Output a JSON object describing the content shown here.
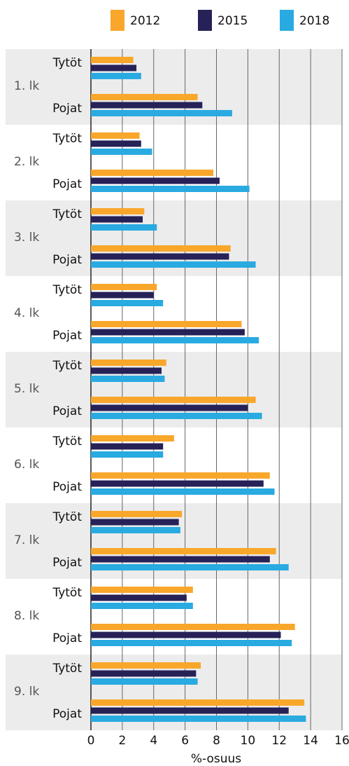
{
  "chart_data": {
    "type": "hbar",
    "x_label": "%-osuus",
    "groups": [
      "1. lk",
      "2. lk",
      "3. lk",
      "4. lk",
      "5. lk",
      "6. lk",
      "7. lk",
      "8. lk",
      "9. lk"
    ],
    "categories": [
      "Tytöt",
      "Pojat",
      "Tytöt",
      "Pojat",
      "Tytöt",
      "Pojat",
      "Tytöt",
      "Pojat",
      "Tytöt",
      "Pojat",
      "Tytöt",
      "Pojat",
      "Tytöt",
      "Pojat",
      "Tytöt",
      "Pojat",
      "Tytöt",
      "Pojat"
    ],
    "series": [
      {
        "name": "2012",
        "color": "#f9a72b",
        "values": [
          2.7,
          6.8,
          3.1,
          7.8,
          3.4,
          8.9,
          4.2,
          9.6,
          4.8,
          10.5,
          5.3,
          11.4,
          5.8,
          11.8,
          6.5,
          13.0,
          7.0,
          13.6
        ]
      },
      {
        "name": "2015",
        "color": "#262157",
        "values": [
          2.9,
          7.1,
          3.2,
          8.2,
          3.3,
          8.8,
          4.0,
          9.8,
          4.5,
          10.0,
          4.6,
          11.0,
          5.6,
          11.4,
          6.1,
          12.1,
          6.7,
          12.6
        ]
      },
      {
        "name": "2018",
        "color": "#29aae1",
        "values": [
          3.2,
          9.0,
          3.9,
          10.1,
          4.2,
          10.5,
          4.6,
          10.7,
          4.7,
          10.9,
          4.6,
          11.7,
          5.7,
          12.6,
          6.5,
          12.8,
          6.8,
          13.7
        ]
      }
    ],
    "xlim": [
      0,
      16
    ],
    "xticks": [
      0,
      2,
      4,
      6,
      8,
      10,
      12,
      14,
      16
    ],
    "grid": true,
    "legend": "top"
  }
}
